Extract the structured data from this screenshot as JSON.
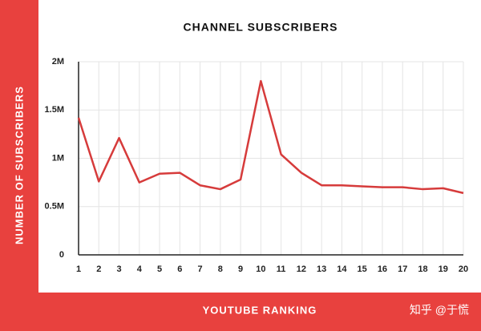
{
  "chart_data": {
    "type": "line",
    "title": "CHANNEL SUBSCRIBERS",
    "x_label": "YOUTUBE RANKING",
    "y_label": "NUMBER OF SUBSCRIBERS",
    "watermark": "知乎 @于慌",
    "x": [
      1,
      2,
      3,
      4,
      5,
      6,
      7,
      8,
      9,
      10,
      11,
      12,
      13,
      14,
      15,
      16,
      17,
      18,
      19,
      20
    ],
    "series": [
      {
        "name": "Subscribers",
        "color": "#d63b3b",
        "values": [
          1420000,
          760000,
          1210000,
          750000,
          840000,
          850000,
          720000,
          680000,
          780000,
          1800000,
          1040000,
          850000,
          720000,
          720000,
          710000,
          700000,
          700000,
          680000,
          690000,
          640000
        ]
      }
    ],
    "xlim": [
      1,
      20
    ],
    "xticks": [
      1,
      2,
      3,
      4,
      5,
      6,
      7,
      8,
      9,
      10,
      11,
      12,
      13,
      14,
      15,
      16,
      17,
      18,
      19,
      20
    ],
    "ylim": [
      0,
      2000000
    ],
    "yticks": [
      0,
      {
        "value": 500000,
        "label": "0.5M"
      },
      {
        "value": 1000000,
        "label": "1M"
      },
      {
        "value": 1500000,
        "label": "1.5M"
      },
      {
        "value": 2000000,
        "label": "2M"
      }
    ],
    "grid": true
  }
}
